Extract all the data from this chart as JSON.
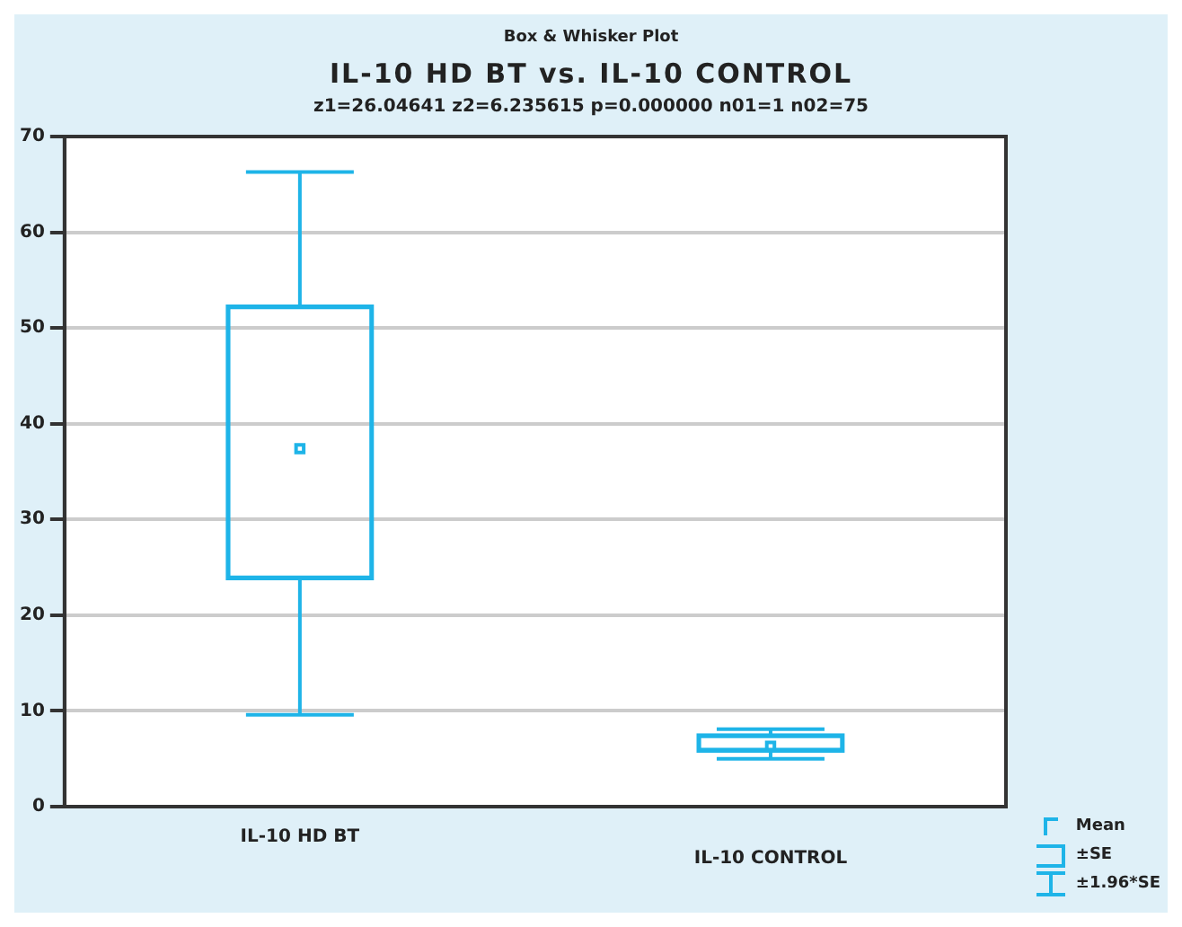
{
  "chart_data": {
    "type": "box",
    "title": "IL-10 HD BT vs. IL-10 CONTROL",
    "subtitle": "z1=26.04641   z2=6.235615 p=0.000000   n01=1   n02=75",
    "annotations": [
      "Box & Whisker Plot",
      "Mean",
      "±SE",
      "±1.96*SE"
    ],
    "categories": [
      "IL-10 HD BT",
      "IL-10 CONTROL"
    ],
    "series": [
      {
        "color": "#1eb4e8",
        "boxes": [
          {
            "low": 9.6,
            "q1": 23.7,
            "mean": 37.4,
            "q3": 52.4,
            "high": 66.3
          },
          {
            "low": 5.0,
            "q1": 5.7,
            "mean": 6.3,
            "q3": 7.6,
            "high": 8.1
          }
        ]
      }
    ],
    "ylim": [
      0,
      70
    ],
    "yticks": [
      0,
      10,
      20,
      30,
      40,
      50,
      60,
      70
    ],
    "grid": "y"
  }
}
